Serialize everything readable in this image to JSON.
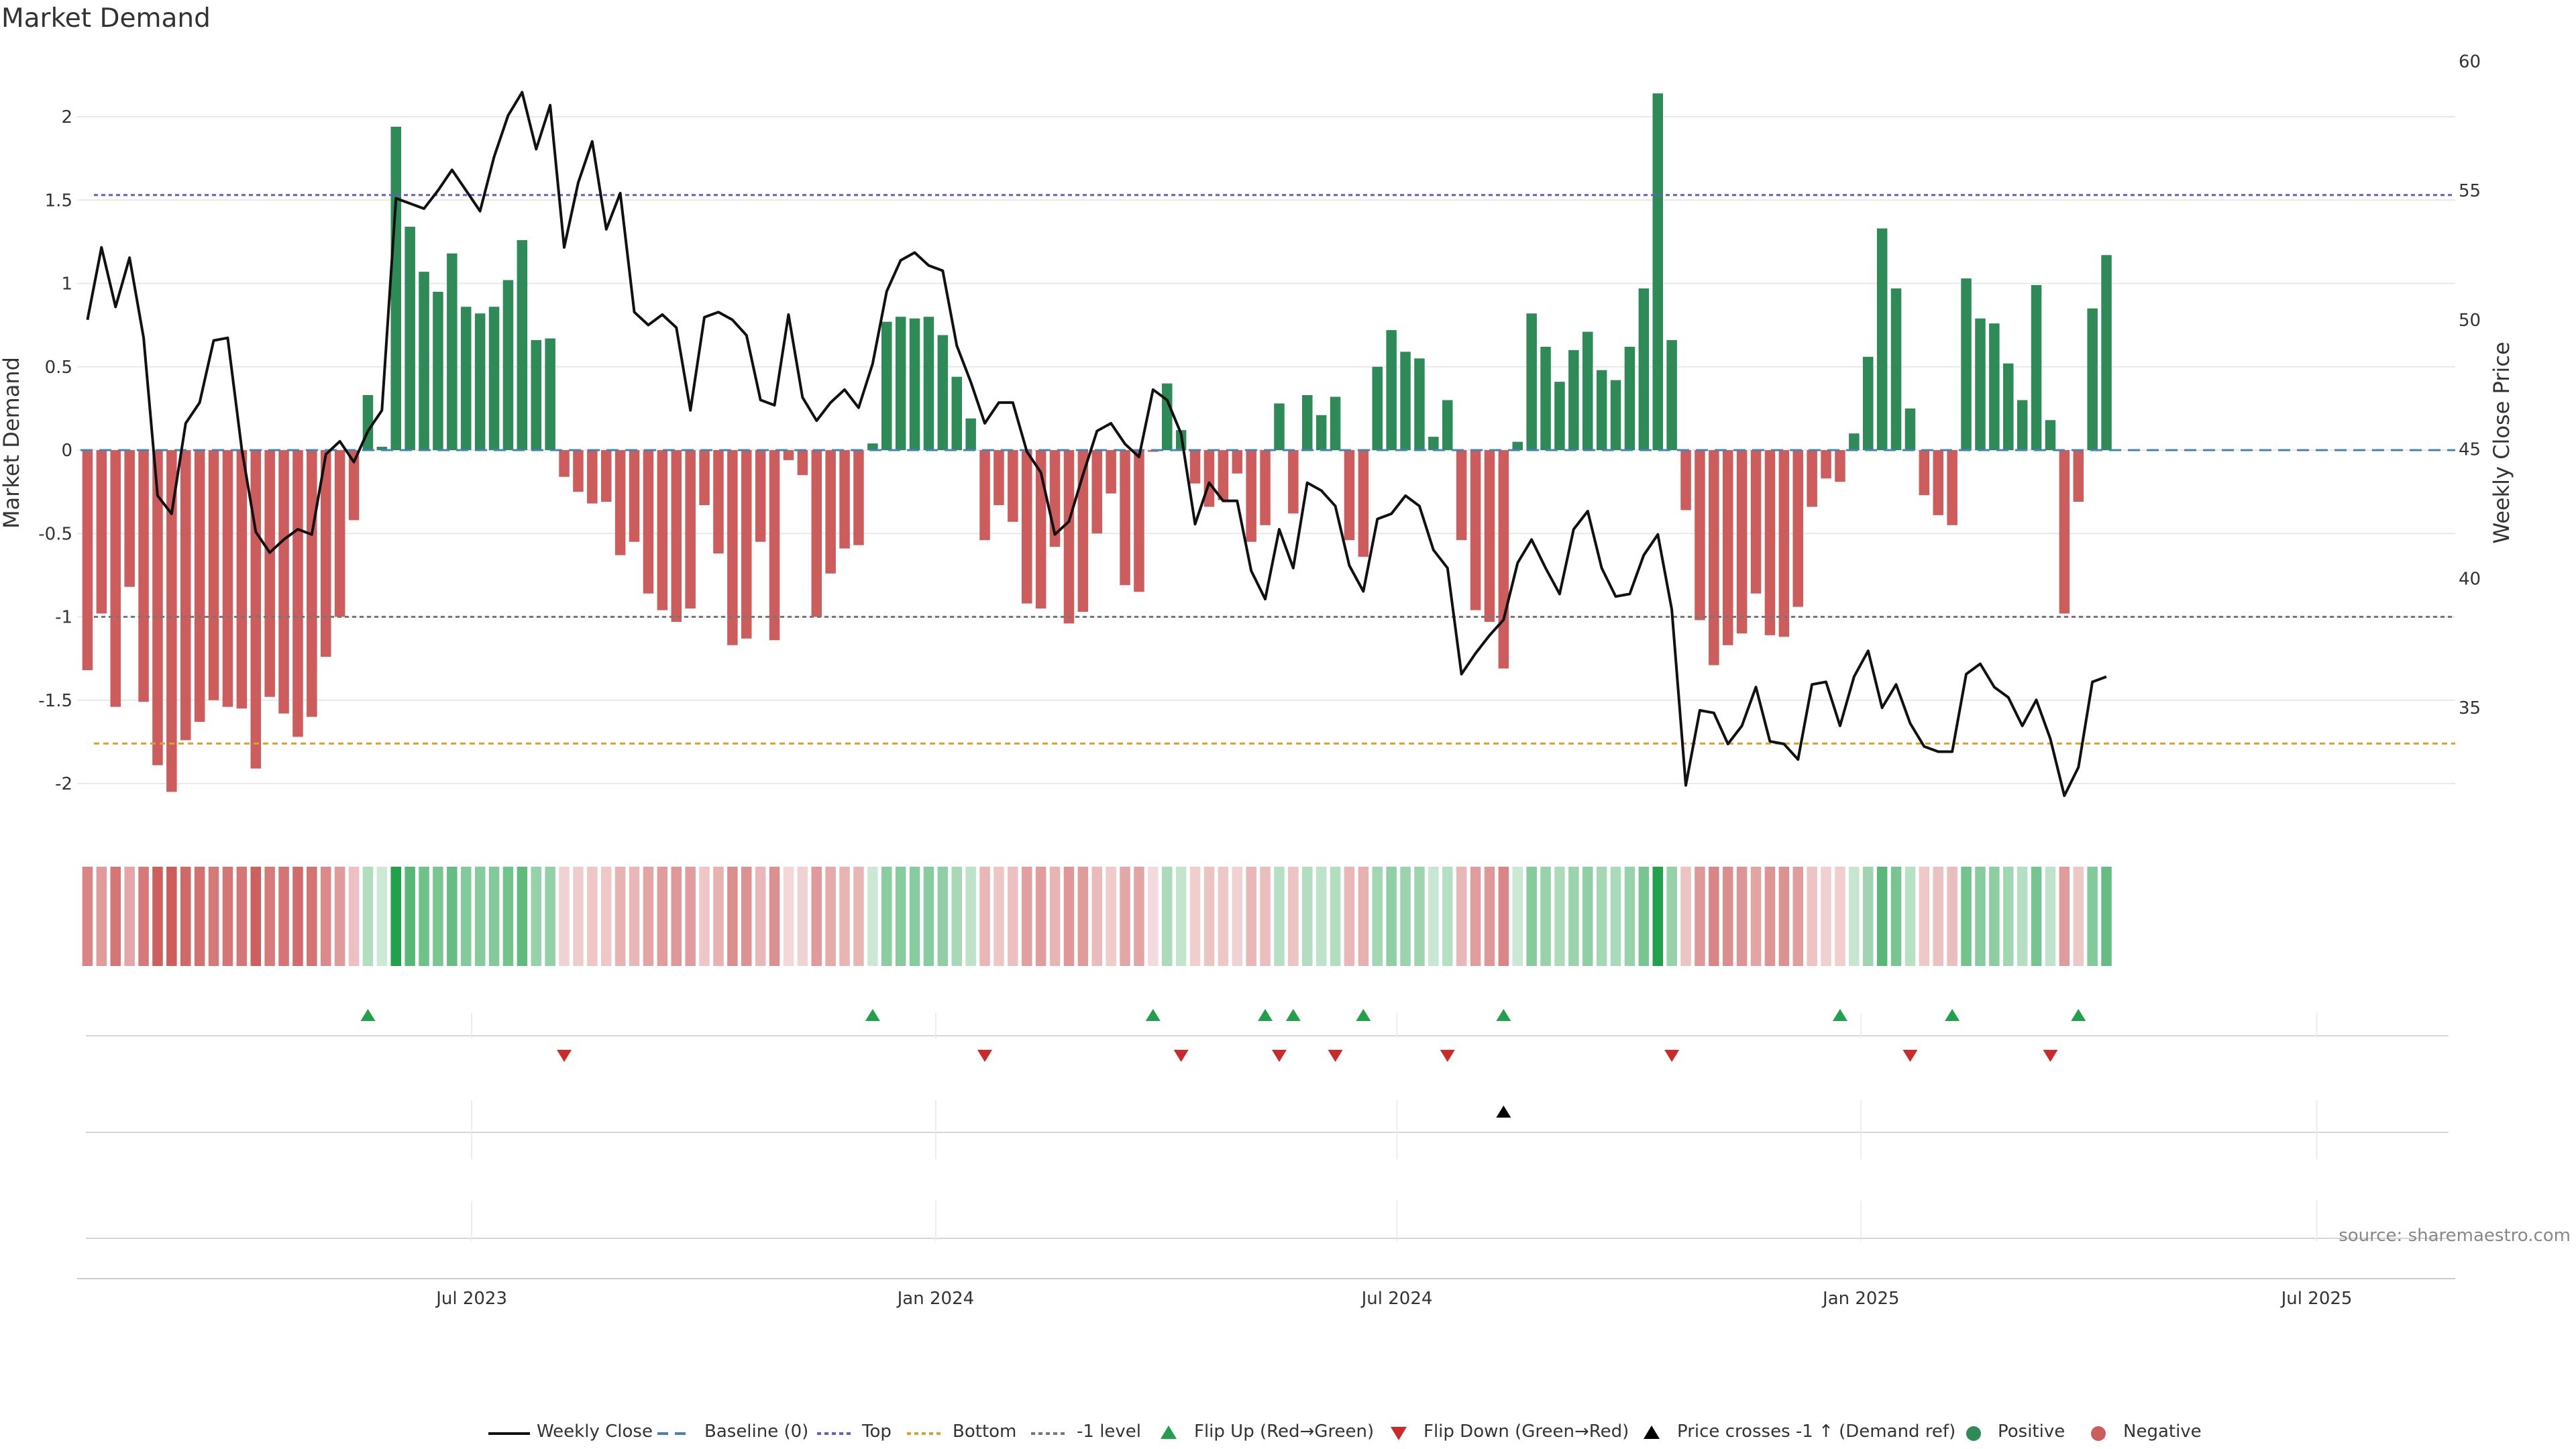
{
  "chart_data": {
    "type": "bar",
    "title": "Market Demand",
    "ylabel": "Market Demand",
    "y2label": "Weekly Close Price",
    "source": "source: sharemaestro.com",
    "ylim": [
      -2.25,
      2.4
    ],
    "y2lim": [
      30,
      61
    ],
    "yticks": [
      "-2",
      "-1.5",
      "-1",
      "-0.5",
      "0",
      "0.5",
      "1",
      "1.5",
      "2"
    ],
    "y2ticks": [
      "35",
      "40",
      "45",
      "50",
      "55",
      "60"
    ],
    "xticks": [
      {
        "label": "Jul 2023",
        "index": 27.4
      },
      {
        "label": "Jan 2024",
        "index": 60.5
      },
      {
        "label": "Jul 2024",
        "index": 93.4
      },
      {
        "label": "Jan 2025",
        "index": 126.5
      },
      {
        "label": "Jul 2025",
        "index": 159.0
      }
    ],
    "levels": {
      "top": 1.53,
      "bottom": -1.76,
      "minus1": -1.0
    },
    "demand": [
      -1.32,
      -0.98,
      -1.54,
      -0.82,
      -1.51,
      -1.89,
      -2.05,
      -1.74,
      -1.63,
      -1.5,
      -1.54,
      -1.55,
      -1.91,
      -1.48,
      -1.58,
      -1.72,
      -1.6,
      -1.24,
      -1.0,
      -0.42,
      0.33,
      0.02,
      1.94,
      1.34,
      1.07,
      0.95,
      1.18,
      0.86,
      0.82,
      0.86,
      1.02,
      1.26,
      0.66,
      0.67,
      -0.16,
      -0.25,
      -0.32,
      -0.31,
      -0.63,
      -0.55,
      -0.86,
      -0.96,
      -1.03,
      -0.95,
      -0.33,
      -0.62,
      -1.17,
      -1.13,
      -0.55,
      -1.14,
      -0.06,
      -0.15,
      -1.0,
      -0.74,
      -0.59,
      -0.57,
      0.04,
      0.77,
      0.8,
      0.79,
      0.8,
      0.69,
      0.44,
      0.19,
      -0.54,
      -0.33,
      -0.43,
      -0.92,
      -0.95,
      -0.58,
      -1.04,
      -0.97,
      -0.5,
      -0.26,
      -0.81,
      -0.85,
      -0.01,
      0.4,
      0.12,
      -0.2,
      -0.34,
      -0.3,
      -0.14,
      -0.55,
      -0.45,
      0.28,
      -0.38,
      0.33,
      0.21,
      0.32,
      -0.54,
      -0.64,
      0.5,
      0.72,
      0.59,
      0.55,
      0.08,
      0.3,
      -0.54,
      -0.96,
      -1.03,
      -1.31,
      0.05,
      0.82,
      0.62,
      0.41,
      0.6,
      0.71,
      0.48,
      0.42,
      0.62,
      0.97,
      2.14,
      0.66,
      -0.36,
      -1.02,
      -1.29,
      -1.17,
      -1.1,
      -0.86,
      -1.11,
      -1.12,
      -0.94,
      -0.34,
      -0.17,
      -0.19,
      0.1,
      0.56,
      1.33,
      0.97,
      0.25,
      -0.27,
      -0.39,
      -0.45,
      1.03,
      0.79,
      0.76,
      0.52,
      0.3,
      0.99,
      0.18,
      -0.98,
      -0.31,
      0.85,
      1.17
    ],
    "close": [
      50.0,
      52.8,
      50.5,
      52.4,
      49.3,
      43.2,
      42.5,
      46.0,
      46.8,
      49.2,
      49.3,
      45.0,
      41.8,
      41.0,
      41.5,
      41.9,
      41.7,
      44.8,
      45.3,
      44.5,
      45.7,
      46.5,
      54.7,
      54.5,
      54.3,
      55.0,
      55.8,
      55.0,
      54.2,
      56.3,
      57.9,
      58.8,
      56.6,
      58.3,
      52.8,
      55.3,
      56.9,
      53.5,
      54.9,
      50.3,
      49.8,
      50.2,
      49.7,
      46.5,
      50.1,
      50.3,
      50.0,
      49.4,
      46.9,
      46.7,
      50.2,
      47.0,
      46.1,
      46.8,
      47.3,
      46.6,
      48.3,
      51.1,
      52.3,
      52.6,
      52.1,
      51.9,
      49.0,
      47.6,
      46.0,
      46.8,
      46.8,
      44.9,
      44.1,
      41.7,
      42.2,
      44.0,
      45.7,
      46.0,
      45.2,
      44.7,
      47.3,
      46.9,
      45.6,
      42.1,
      43.7,
      43.0,
      43.0,
      40.3,
      39.2,
      41.9,
      40.4,
      43.7,
      43.4,
      42.8,
      40.5,
      39.5,
      42.3,
      42.5,
      43.2,
      42.8,
      41.1,
      40.4,
      36.3,
      37.1,
      37.8,
      38.4,
      40.6,
      41.5,
      40.4,
      39.4,
      41.9,
      42.6,
      40.4,
      39.3,
      39.4,
      40.9,
      41.7,
      38.8,
      32.0,
      34.9,
      34.8,
      33.6,
      34.3,
      35.8,
      33.7,
      33.6,
      33.0,
      35.9,
      36.0,
      34.3,
      36.2,
      37.2,
      35.0,
      35.9,
      34.4,
      33.5,
      33.3,
      33.3,
      36.3,
      36.7,
      35.8,
      35.4,
      34.3,
      35.3,
      33.8,
      31.6,
      32.7,
      36.0,
      36.2
    ],
    "flip_up_index": [
      20,
      56,
      76,
      84,
      86,
      91,
      101,
      125,
      133,
      142
    ],
    "flip_down_index": [
      34,
      64,
      78,
      85,
      89,
      97,
      113,
      130,
      140
    ],
    "price_cross_index": [
      101
    ],
    "legend": [
      "Weekly Close",
      "Baseline (0)",
      "Top",
      "Bottom",
      "-1 level",
      "Flip Up (Red→Green)",
      "Flip Down (Green→Red)",
      "Price crosses -1 ↑ (Demand ref)",
      "Positive",
      "Negative"
    ],
    "colors": {
      "positive": "#2e8b57",
      "negative": "#cd5c5c",
      "close": "#111111",
      "baseline": "#4682b4",
      "top": "#6a5acd",
      "bottom": "#e0a030",
      "minus1": "#777777",
      "flip_up": "#22a04b",
      "flip_down": "#cc2a2a",
      "cross": "#000000",
      "grid": "#e8e8e8"
    },
    "legend_placement": "bottom"
  }
}
